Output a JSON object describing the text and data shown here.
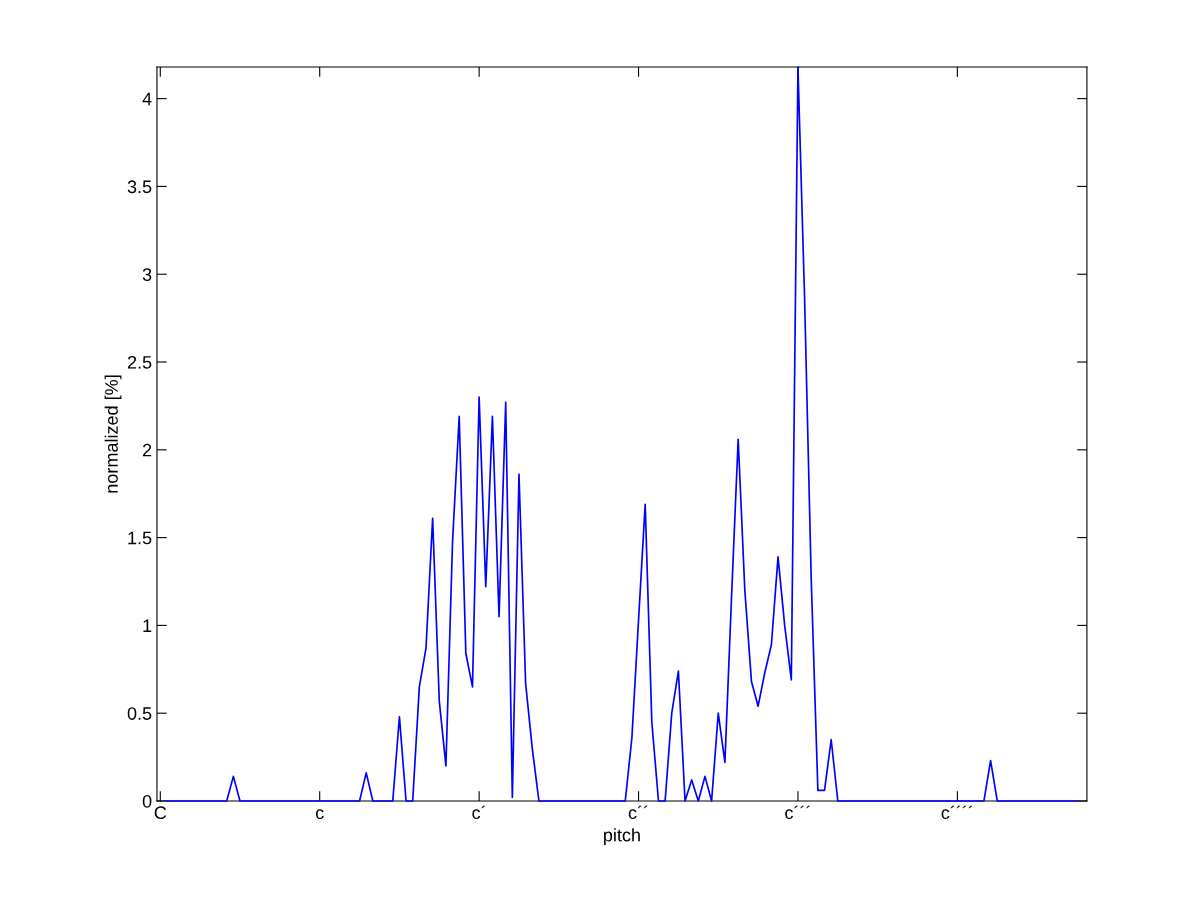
{
  "chart_data": {
    "type": "line",
    "xlabel": "pitch",
    "ylabel": "normalized [%]",
    "ylim": [
      0,
      4.18
    ],
    "yticks": [
      0,
      0.5,
      1,
      1.5,
      2,
      2.5,
      3,
      3.5,
      4
    ],
    "grid": false,
    "legend": false,
    "marker": "none",
    "line_style": "solid",
    "categories": [
      "C",
      null,
      null,
      null,
      null,
      null,
      null,
      null,
      null,
      null,
      null,
      null,
      null,
      null,
      null,
      null,
      null,
      null,
      null,
      null,
      null,
      null,
      null,
      null,
      "c",
      null,
      null,
      null,
      null,
      null,
      null,
      null,
      null,
      null,
      null,
      null,
      null,
      null,
      null,
      null,
      null,
      null,
      null,
      null,
      null,
      null,
      null,
      null,
      "c´",
      null,
      null,
      null,
      null,
      null,
      null,
      null,
      null,
      null,
      null,
      null,
      null,
      null,
      null,
      null,
      null,
      null,
      null,
      null,
      null,
      null,
      null,
      null,
      "c´´",
      null,
      null,
      null,
      null,
      null,
      null,
      null,
      null,
      null,
      null,
      null,
      null,
      null,
      null,
      null,
      null,
      null,
      null,
      null,
      null,
      null,
      null,
      null,
      "c´´´",
      null,
      null,
      null,
      null,
      null,
      null,
      null,
      null,
      null,
      null,
      null,
      null,
      null,
      null,
      null,
      null,
      null,
      null,
      null,
      null,
      null,
      null,
      null,
      "c´´´´",
      null,
      null,
      null,
      null,
      null,
      null,
      null,
      null,
      null,
      null,
      null,
      null,
      null,
      null,
      null,
      null,
      null,
      null,
      null
    ],
    "series": [
      {
        "color": "#0000ff",
        "values": [
          null,
          0,
          0,
          0,
          0,
          0,
          0,
          0,
          0,
          0,
          0,
          0.14,
          0,
          0,
          0,
          0,
          0,
          0,
          0,
          0,
          0,
          0,
          0,
          0,
          0,
          0,
          0,
          0,
          0,
          0,
          0,
          0.16,
          0,
          0,
          0,
          0,
          0.48,
          0,
          0,
          0.65,
          0.87,
          1.61,
          0.57,
          0.2,
          1.48,
          2.19,
          0.84,
          0.65,
          2.3,
          1.22,
          2.19,
          1.05,
          2.27,
          0.02,
          1.86,
          0.67,
          0.3,
          0,
          0,
          0,
          0,
          0,
          0,
          0,
          0,
          0,
          0,
          0,
          0,
          0,
          0,
          0.36,
          1.03,
          1.69,
          0.45,
          0,
          0,
          0.5,
          0.74,
          0,
          0.12,
          0,
          0.14,
          0,
          0.5,
          0.22,
          1.16,
          2.06,
          1.2,
          0.68,
          0.54,
          0.73,
          0.89,
          1.39,
          1.0,
          0.69,
          4.18,
          2.86,
          1.26,
          0.06,
          0.06,
          0.35,
          0,
          0,
          0,
          0,
          0,
          0,
          0,
          0,
          0,
          0,
          0,
          0,
          0,
          0,
          0,
          0,
          0,
          0,
          0,
          0,
          0,
          0,
          0,
          0.23,
          0,
          0,
          0,
          0,
          0,
          0,
          0,
          0,
          0,
          0,
          0,
          0,
          0,
          null
        ]
      }
    ]
  }
}
